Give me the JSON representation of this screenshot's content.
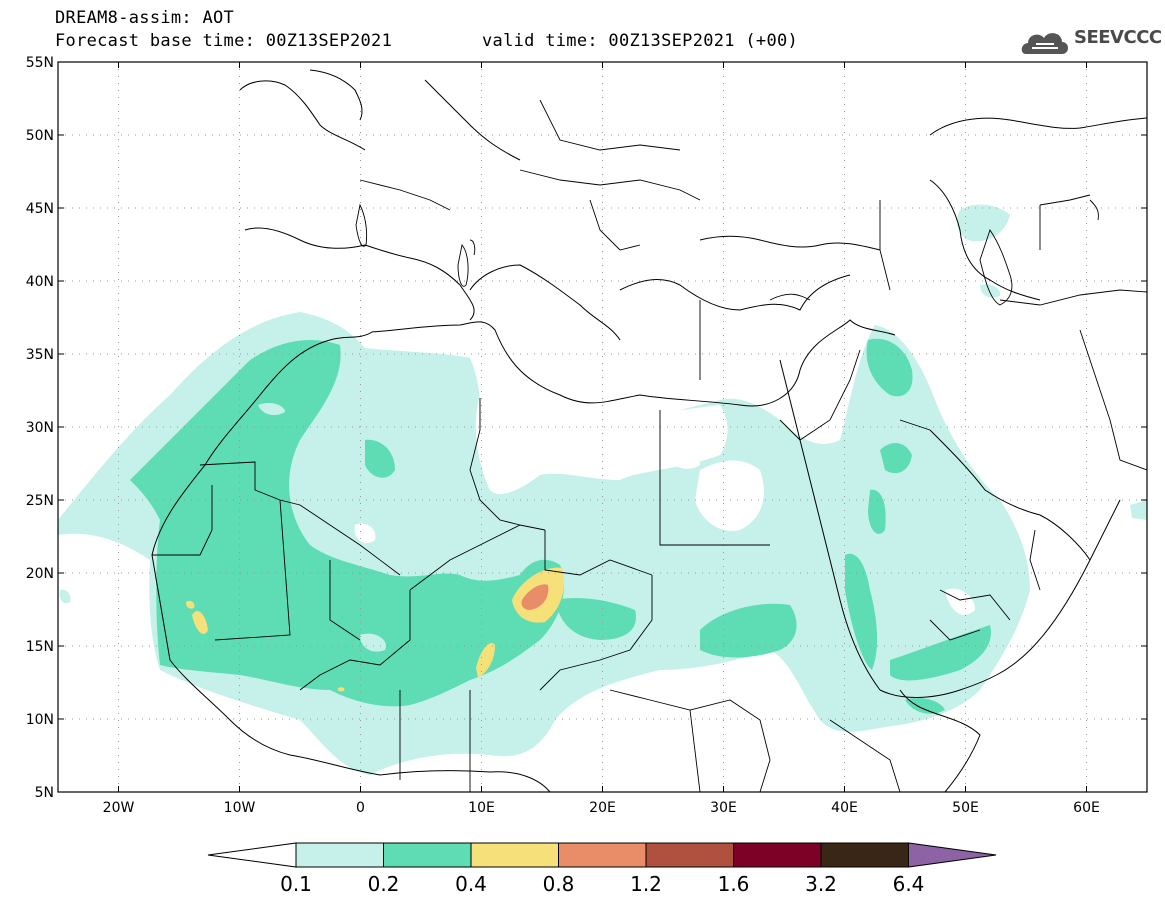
{
  "header": {
    "title": "DREAM8-assim: AOT",
    "base_time": "Forecast base time: 00Z13SEP2021",
    "valid_time": "valid time: 00Z13SEP2021 (+00)"
  },
  "logo": {
    "text": "SEEVCCC",
    "icon": "cloud-logo-icon"
  },
  "map": {
    "lat_labels": [
      "55N",
      "50N",
      "45N",
      "40N",
      "35N",
      "30N",
      "25N",
      "20N",
      "15N",
      "10N",
      "5N"
    ],
    "lon_labels": [
      "20W",
      "10W",
      "0",
      "10E",
      "20E",
      "30E",
      "40E",
      "50E",
      "60E"
    ]
  },
  "colorbar": {
    "labels": [
      "0.1",
      "0.2",
      "0.4",
      "0.8",
      "1.2",
      "1.6",
      "3.2",
      "6.4"
    ],
    "colors": [
      "#c5f1ea",
      "#5edcb4",
      "#f6e07a",
      "#e98c68",
      "#b0503f",
      "#7d0026",
      "#3a2617",
      "#8e63a6"
    ]
  },
  "colors": {
    "level1": "#c5f1ea",
    "level2": "#5edcb4",
    "level3": "#f6e07a",
    "level4": "#e98c68"
  }
}
